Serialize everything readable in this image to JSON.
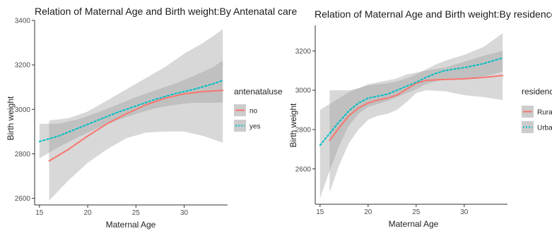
{
  "chart_data": [
    {
      "type": "line",
      "title": "Relation of Maternal Age and Birth weight:By Antenatal care",
      "xlabel": "Maternal Age",
      "ylabel": "Birth weight",
      "xlim": [
        14.5,
        34.5
      ],
      "ylim": [
        2570,
        3400
      ],
      "x_ticks": [
        15,
        20,
        25,
        30
      ],
      "y_ticks": [
        2600,
        2800,
        3000,
        3200,
        3400
      ],
      "grid": false,
      "legend": {
        "title": "antenataluse",
        "placement": "right"
      },
      "series": [
        {
          "name": "no",
          "color": "#f8766d",
          "line_style": "solid",
          "x": [
            16,
            18,
            20,
            22,
            24,
            26,
            28,
            30,
            32,
            34
          ],
          "y": [
            2768,
            2820,
            2880,
            2935,
            2980,
            3020,
            3050,
            3070,
            3080,
            3085
          ],
          "lower": [
            2590,
            2680,
            2760,
            2820,
            2870,
            2895,
            2900,
            2900,
            2880,
            2850
          ],
          "upper": [
            2950,
            2960,
            2990,
            3040,
            3090,
            3140,
            3190,
            3250,
            3300,
            3360
          ]
        },
        {
          "name": "yes",
          "color": "#00bfc4",
          "line_style": "dotted",
          "x": [
            15,
            17,
            19,
            21,
            23,
            25,
            27,
            29,
            31,
            33,
            34
          ],
          "y": [
            2855,
            2880,
            2915,
            2950,
            2985,
            3015,
            3045,
            3070,
            3090,
            3115,
            3130
          ],
          "lower": [
            2780,
            2830,
            2875,
            2915,
            2950,
            2980,
            3005,
            3020,
            3030,
            3030,
            3030
          ],
          "upper": [
            2935,
            2935,
            2955,
            2985,
            3020,
            3055,
            3085,
            3115,
            3150,
            3190,
            3220
          ]
        }
      ]
    },
    {
      "type": "line",
      "title": "Relation of Maternal Age and Birth weight:By residence",
      "xlabel": "Maternal Age",
      "ylabel": "Birth weight",
      "xlim": [
        14.5,
        34.5
      ],
      "ylim": [
        2420,
        3330
      ],
      "x_ticks": [
        15,
        20,
        25,
        30
      ],
      "y_ticks": [
        2600,
        2800,
        3000,
        3200
      ],
      "grid": false,
      "legend": {
        "title": "residenc",
        "placement": "right"
      },
      "series": [
        {
          "name": "Rural",
          "color": "#f8766d",
          "line_style": "solid",
          "x": [
            16,
            17,
            18,
            19,
            20,
            21,
            22,
            23,
            24,
            25,
            26,
            28,
            30,
            32,
            34
          ],
          "y": [
            2745,
            2810,
            2870,
            2910,
            2935,
            2950,
            2960,
            2975,
            3005,
            3035,
            3050,
            3055,
            3058,
            3065,
            3075
          ],
          "lower": [
            2480,
            2620,
            2730,
            2800,
            2850,
            2870,
            2880,
            2900,
            2940,
            2985,
            3000,
            2995,
            2975,
            2965,
            2950
          ],
          "upper": [
            3000,
            3000,
            3000,
            3010,
            3030,
            3040,
            3050,
            3060,
            3080,
            3090,
            3100,
            3115,
            3145,
            3175,
            3200
          ]
        },
        {
          "name": "Urban",
          "color": "#00bfc4",
          "line_style": "dotted",
          "x": [
            15,
            16,
            17,
            18,
            19,
            20,
            21,
            22,
            23,
            24,
            25,
            26,
            27,
            28,
            30,
            32,
            34
          ],
          "y": [
            2720,
            2780,
            2840,
            2895,
            2935,
            2960,
            2970,
            2980,
            3000,
            3020,
            3040,
            3065,
            3085,
            3100,
            3115,
            3135,
            3165
          ],
          "lower": [
            2450,
            2590,
            2720,
            2820,
            2880,
            2915,
            2930,
            2945,
            2965,
            2985,
            3005,
            3030,
            3045,
            3055,
            3060,
            3070,
            3095
          ],
          "upper": [
            2900,
            2930,
            2960,
            2990,
            3010,
            3025,
            3030,
            3035,
            3045,
            3060,
            3080,
            3105,
            3130,
            3150,
            3180,
            3220,
            3290
          ]
        }
      ]
    }
  ]
}
